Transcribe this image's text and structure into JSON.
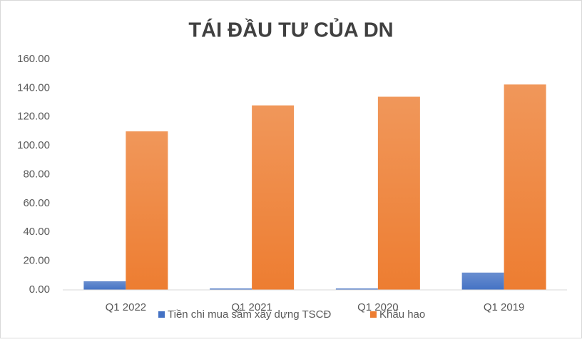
{
  "chart_data": {
    "type": "bar",
    "title": "TÁI ĐẦU TƯ CỦA DN",
    "categories": [
      "Q1 2022",
      "Q1 2021",
      "Q1 2020",
      "Q1 2019"
    ],
    "series": [
      {
        "name": "Tiền chi mua sắm xây dựng TSCĐ",
        "color": "#4472c4",
        "values": [
          6,
          1,
          1,
          12
        ]
      },
      {
        "name": "Khấu hao",
        "color": "#ed7d31",
        "values": [
          110,
          128,
          134,
          142.5
        ]
      }
    ],
    "ylim": [
      0,
      160
    ],
    "yticks": [
      {
        "value": 0,
        "label": "0.00"
      },
      {
        "value": 20,
        "label": "20.00"
      },
      {
        "value": 40,
        "label": "40.00"
      },
      {
        "value": 60,
        "label": "60.00"
      },
      {
        "value": 80,
        "label": "80.00"
      },
      {
        "value": 100,
        "label": "100.00"
      },
      {
        "value": 120,
        "label": "120.00"
      },
      {
        "value": 140,
        "label": "140.00"
      },
      {
        "value": 160,
        "label": "160.00"
      }
    ],
    "grid": false,
    "legend": "bottom"
  }
}
